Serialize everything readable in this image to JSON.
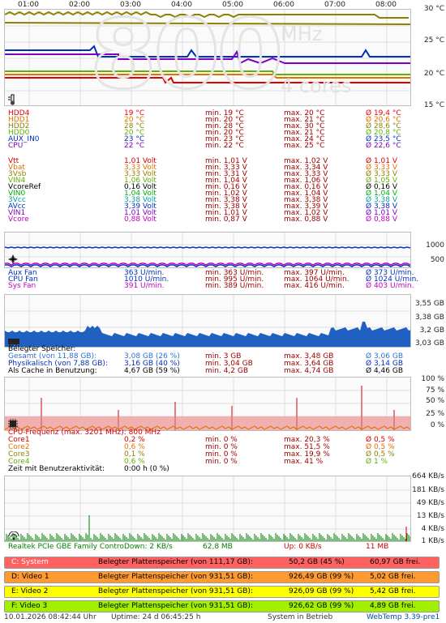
{
  "time_axis": [
    "01:00",
    "02:00",
    "03:00",
    "04:00",
    "05:00",
    "06:00",
    "07:00",
    "08:00"
  ],
  "temp_panel": {
    "big_text": "800",
    "unit_text": "MHz",
    "cores_text": "4 cores",
    "y_labels": [
      "30 °C",
      "25 °C",
      "20 °C",
      "15 °C"
    ],
    "rows": [
      {
        "name": "HDD4",
        "cur": "19 °C",
        "min": "min. 19 °C",
        "max": "max. 20 °C",
        "avg": "Ø 19,4 °C",
        "color": "#e00000"
      },
      {
        "name": "HDD1",
        "cur": "20 °C",
        "min": "min. 20 °C",
        "max": "max. 21 °C",
        "avg": "Ø 20,6 °C",
        "color": "#e07000"
      },
      {
        "name": "HDD2",
        "cur": "28 °C",
        "min": "min. 28 °C",
        "max": "max. 30 °C",
        "avg": "Ø 28,6 °C",
        "color": "#908000"
      },
      {
        "name": "HDD0",
        "cur": "20 °C",
        "min": "min. 20 °C",
        "max": "max. 21 °C",
        "avg": "Ø 20,8 °C",
        "color": "#60b000"
      },
      {
        "name": "AUX_IN0",
        "cur": "23 °C",
        "min": "min. 23 °C",
        "max": "max. 24 °C",
        "avg": "Ø 23,5 °C",
        "color": "#0030c0"
      },
      {
        "name": "CPU",
        "cur": "22 °C",
        "min": "min. 22 °C",
        "max": "max. 25 °C",
        "avg": "Ø 22,6 °C",
        "color": "#8000c0"
      }
    ]
  },
  "volt_rows": [
    {
      "name": "Vtt",
      "cur": "1,01 Volt",
      "min": "min. 1,01 V",
      "max": "max. 1,02 V",
      "avg": "Ø 1,01 V",
      "color": "#d00000"
    },
    {
      "name": "Vbat",
      "cur": "3,33 Volt",
      "min": "min. 3,33 V",
      "max": "max. 3,34 V",
      "avg": "Ø 3,33 V",
      "color": "#e07000"
    },
    {
      "name": "3Vsb",
      "cur": "3,33 Volt",
      "min": "min. 3,31 V",
      "max": "max. 3,33 V",
      "avg": "Ø 3,33 V",
      "color": "#908000"
    },
    {
      "name": "VIN4",
      "cur": "1,06 Volt",
      "min": "min. 1,04 V",
      "max": "max. 1,06 V",
      "avg": "Ø 1,05 V",
      "color": "#60b000"
    },
    {
      "name": "VcoreRef",
      "cur": "0,16 Volt",
      "min": "min. 0,16 V",
      "max": "max. 0,16 V",
      "avg": "Ø 0,16 V",
      "color": "#000000"
    },
    {
      "name": "VIN0",
      "cur": "1,04 Volt",
      "min": "min. 1,02 V",
      "max": "max. 1,04 V",
      "avg": "Ø 1,04 V",
      "color": "#00b000"
    },
    {
      "name": "3Vcc",
      "cur": "3,38 Volt",
      "min": "min. 3,38 V",
      "max": "max. 3,38 V",
      "avg": "Ø 3,38 V",
      "color": "#00a0a0"
    },
    {
      "name": "AVcc",
      "cur": "3,39 Volt",
      "min": "min. 3,38 V",
      "max": "max. 3,39 V",
      "avg": "Ø 3,38 V",
      "color": "#0030c0"
    },
    {
      "name": "VIN1",
      "cur": "1,01 Volt",
      "min": "min. 1,01 V",
      "max": "max. 1,02 V",
      "avg": "Ø 1,01 V",
      "color": "#8000c0"
    },
    {
      "name": "Vcore",
      "cur": "0,88 Volt",
      "min": "min. 0,87 V",
      "max": "max. 0,88 V",
      "avg": "Ø 0,88 V",
      "color": "#c000c0"
    }
  ],
  "fan_panel": {
    "y_labels": [
      "1000",
      "500"
    ],
    "rows": [
      {
        "name": "Aux Fan",
        "cur": "363 U/min.",
        "min": "min. 363 U/min.",
        "max": "max. 397 U/min.",
        "avg": "Ø 373 U/min.",
        "color": "#0030c0"
      },
      {
        "name": "CPU Fan",
        "cur": "1010 U/min.",
        "min": "min. 995 U/min.",
        "max": "max. 1064 U/min.",
        "avg": "Ø 1024 U/min.",
        "color": "#0030c0"
      },
      {
        "name": "Sys Fan",
        "cur": "391 U/min.",
        "min": "min. 389 U/min.",
        "max": "max. 416 U/min.",
        "avg": "Ø 403 U/min.",
        "color": "#c000c0"
      }
    ]
  },
  "mem_panel": {
    "y_labels": [
      "3,55 GB",
      "3,38 GB",
      "3,2 GB",
      "3,03 GB"
    ],
    "title": "Belegter Speicher:",
    "rows": [
      {
        "name": "Gesamt (von 11,88 GB):",
        "cur": "3,08 GB (26 %)",
        "min": "min. 3 GB",
        "max": "max. 3,48 GB",
        "avg": "Ø 3,06 GB",
        "color": "#3070d0"
      },
      {
        "name": "Physikalisch (von 7,88 GB):",
        "cur": "3,16 GB (40 %)",
        "min": "min. 3,04 GB",
        "max": "max. 3,64 GB",
        "avg": "Ø 3,14 GB",
        "color": "#0030c0"
      },
      {
        "name": "Als Cache in Benutzung:",
        "cur": "4,67 GB (59 %)",
        "min": "min. 4,2 GB",
        "max": "max. 4,74 GB",
        "avg": "Ø 4,46 GB",
        "color": "#000000"
      }
    ]
  },
  "cpu_panel": {
    "y_labels": [
      "100 %",
      "75 %",
      "50 %",
      "25 %",
      "0 %"
    ],
    "title": "CPU-Frequenz (max. 3201 MHz): 800 MHz",
    "title_color": "#d00000",
    "rows": [
      {
        "name": "Core1",
        "cur": "0,2 %",
        "min": "min. 0 %",
        "max": "max. 20,3 %",
        "avg": "Ø 0,5 %",
        "color": "#d00000"
      },
      {
        "name": "Core2",
        "cur": "0,6 %",
        "min": "min. 0 %",
        "max": "max. 51,5 %",
        "avg": "Ø 0,5 %",
        "color": "#e07000"
      },
      {
        "name": "Core3",
        "cur": "0,1 %",
        "min": "min. 0 %",
        "max": "max. 19,9 %",
        "avg": "Ø 0,5 %",
        "color": "#908000"
      },
      {
        "name": "Core4",
        "cur": "0,6 %",
        "min": "min. 0 %",
        "max": "max. 41 %",
        "avg": "Ø 1 %",
        "color": "#60b000"
      }
    ],
    "activity_label": "Zeit mit Benutzeraktivität:",
    "activity_value": "0:00 h (0 %)"
  },
  "net_panel": {
    "y_labels": [
      "664 KB/s",
      "181 KB/s",
      "49 KB/s",
      "13 KB/s",
      "4 KB/s",
      "1 KB/s"
    ],
    "name": "Realtek PCIe GBE Family Contro",
    "down": "Down: 2 KB/s",
    "down_total": "62,8 MB",
    "up": "Up: 0 KB/s",
    "up_total": "11 MB",
    "down_color": "#008000",
    "up_color": "#d00000"
  },
  "drives": [
    {
      "name": "C: System",
      "label": "Belegter Plattenspeicher (von 111,17 GB):",
      "used": "50,2 GB (45 %)",
      "free": "60,97 GB frei.",
      "pct": 45,
      "bar_color": "#ffb0b0",
      "name_color": "#ffffff",
      "bg": "#ff6060"
    },
    {
      "name": "D: Video 1",
      "label": "Belegter Plattenspeicher (von 931,51 GB):",
      "used": "926,49 GB (99 %)",
      "free": "5,02 GB frei.",
      "pct": 99,
      "bar_color": "#ff9a30",
      "name_color": "#000000",
      "bg": "#ff9a30"
    },
    {
      "name": "E: Video 2",
      "label": "Belegter Plattenspeicher (von 931,51 GB):",
      "used": "926,09 GB (99 %)",
      "free": "5,42 GB frei.",
      "pct": 99,
      "bar_color": "#ffff00",
      "name_color": "#000000",
      "bg": "#ffff00"
    },
    {
      "name": "F: Video 3",
      "label": "Belegter Plattenspeicher (von 931,51 GB):",
      "used": "926,62 GB (99 %)",
      "free": "4,89 GB frei.",
      "pct": 99,
      "bar_color": "#a0f000",
      "name_color": "#000000",
      "bg": "#a0f000"
    }
  ],
  "status": {
    "datetime": "10.01.2026 08:42:44 Uhr",
    "uptime": "Uptime: 24 d 06:45:25 h",
    "state": "System in Betrieb",
    "version": "WebTemp 3.39-pre1"
  }
}
